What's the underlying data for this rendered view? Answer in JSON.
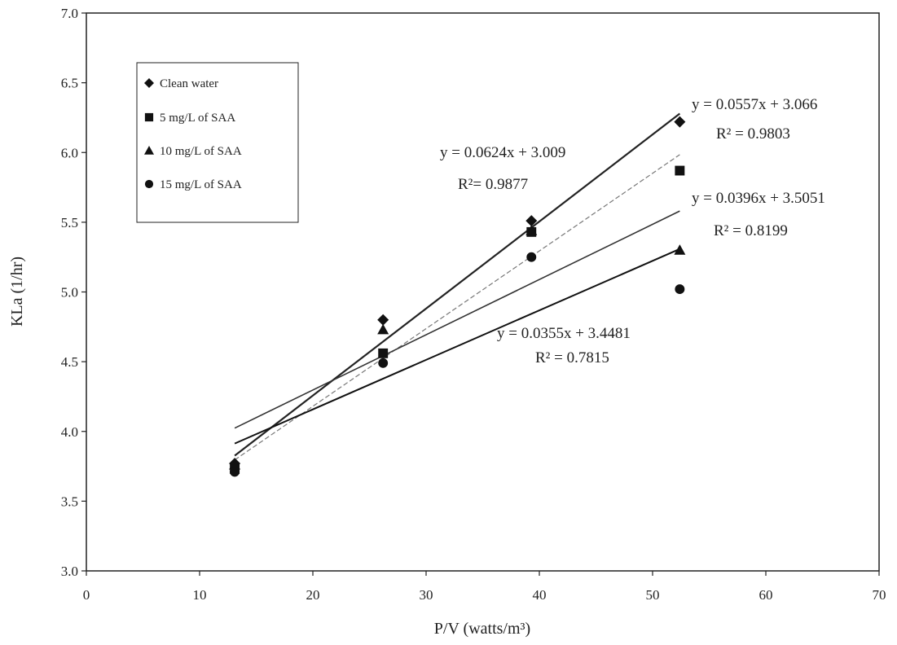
{
  "chart_data": {
    "type": "scatter",
    "title": "",
    "xlabel": "P/V (watts/m³)",
    "ylabel": "KLa (1/hr)",
    "xlim": [
      0,
      70
    ],
    "ylim": [
      3.0,
      7.0
    ],
    "xticks": [
      "0",
      "10",
      "20",
      "30",
      "40",
      "50",
      "60",
      "70"
    ],
    "yticks": [
      "3.0",
      "3.5",
      "4.0",
      "4.5",
      "5.0",
      "5.5",
      "6.0",
      "6.5",
      "7.0"
    ],
    "grid": false,
    "legend_position": "top-left",
    "series": [
      {
        "name": "Clean water",
        "marker": "diamond",
        "x": [
          13.1,
          26.2,
          39.3,
          52.4
        ],
        "y": [
          3.77,
          4.8,
          5.51,
          6.22
        ],
        "trendline": {
          "slope": 0.0557,
          "intercept": 3.066,
          "equation": "y = 0.0557x + 3.066",
          "r2": "R² = 0.9803"
        }
      },
      {
        "name": "5 mg/L of SAA",
        "marker": "square",
        "x": [
          13.1,
          26.2,
          39.3,
          52.4
        ],
        "y": [
          3.73,
          4.56,
          5.43,
          5.87
        ],
        "trendline": {
          "slope": 0.0624,
          "intercept": 3.009,
          "equation": "y = 0.0624x + 3.009",
          "r2": "R²= 0.9877"
        }
      },
      {
        "name": "10 mg/L of SAA",
        "marker": "triangle",
        "x": [
          13.1,
          26.2,
          39.3,
          52.4
        ],
        "y": [
          3.76,
          4.73,
          5.44,
          5.3
        ],
        "trendline": {
          "slope": 0.0396,
          "intercept": 3.5051,
          "equation": "y = 0.0396x + 3.5051",
          "r2": "R²   = 0.8199"
        }
      },
      {
        "name": "15 mg/L of SAA",
        "marker": "circle",
        "x": [
          13.1,
          26.2,
          39.3,
          52.4
        ],
        "y": [
          3.71,
          4.49,
          5.25,
          5.02
        ],
        "trendline": {
          "slope": 0.0355,
          "intercept": 3.4481,
          "equation": "y = 0.0355x + 3.4481",
          "r2": "R² = 0.7815"
        }
      }
    ]
  }
}
